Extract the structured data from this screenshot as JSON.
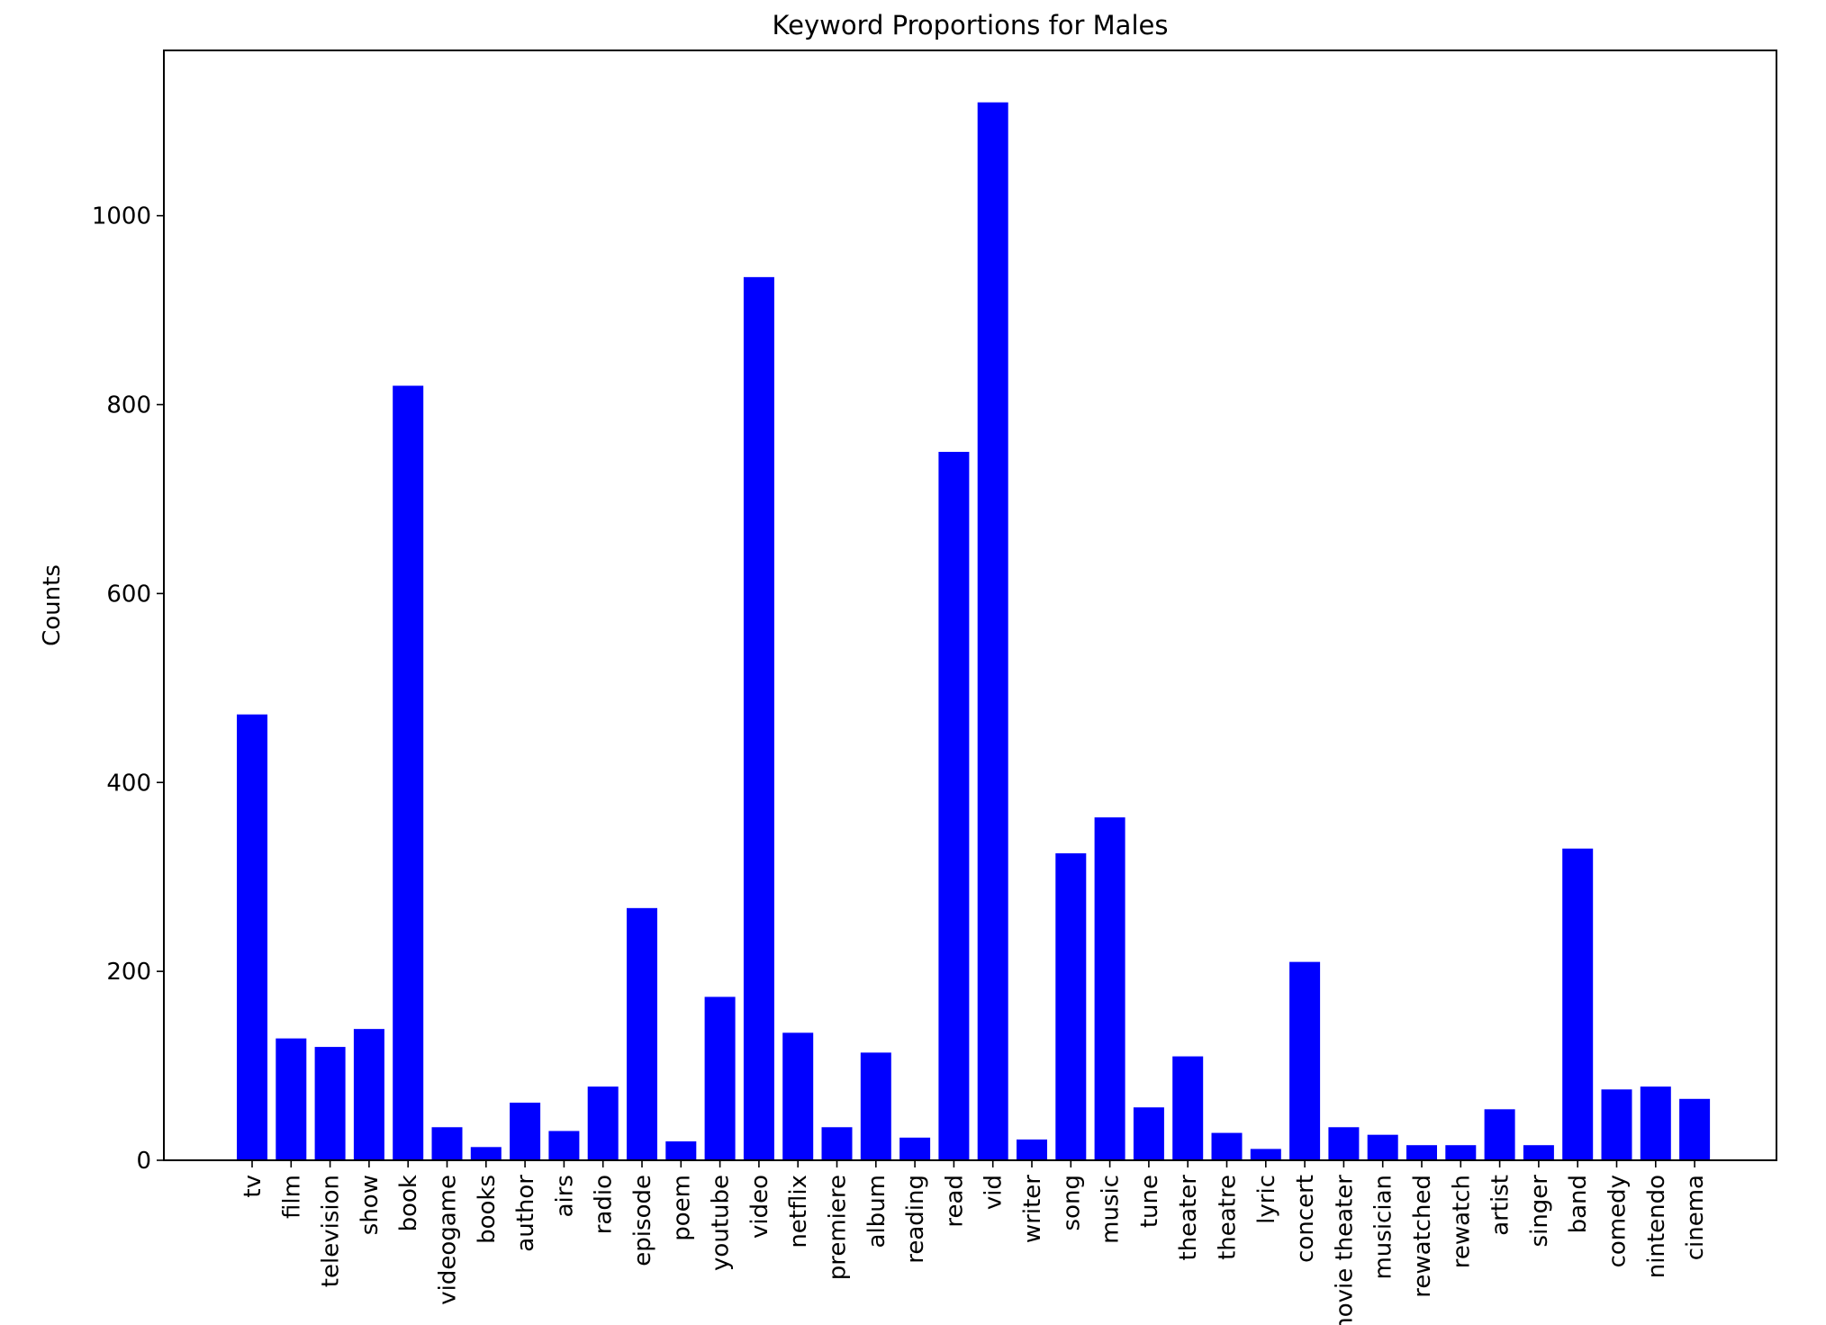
{
  "chart_data": {
    "type": "bar",
    "title": "Keyword Proportions for Males",
    "xlabel": "",
    "ylabel": "Counts",
    "ylim": [
      0,
      1175
    ],
    "yticks": [
      0,
      200,
      400,
      600,
      800,
      1000
    ],
    "grid": false,
    "legend": "none",
    "bar_color": "#0000ff",
    "categories": [
      "tv",
      "film",
      "television",
      "show",
      "book",
      "videogame",
      "books",
      "author",
      "airs",
      "radio",
      "episode",
      "poem",
      "youtube",
      "video",
      "netflix",
      "premiere",
      "album",
      "reading",
      "read",
      "vid",
      "writer",
      "song",
      "music",
      "tune",
      "theater",
      "theatre",
      "lyric",
      "concert",
      "movie theater",
      "musician",
      "rewatched",
      "rewatch",
      "artist",
      "singer",
      "band",
      "comedy",
      "nintendo",
      "cinema"
    ],
    "values": [
      472,
      129,
      120,
      139,
      820,
      35,
      14,
      61,
      31,
      78,
      267,
      20,
      173,
      935,
      135,
      35,
      114,
      24,
      750,
      1120,
      22,
      325,
      363,
      56,
      110,
      29,
      12,
      210,
      35,
      27,
      16,
      16,
      54,
      16,
      330,
      75,
      78,
      65
    ]
  }
}
